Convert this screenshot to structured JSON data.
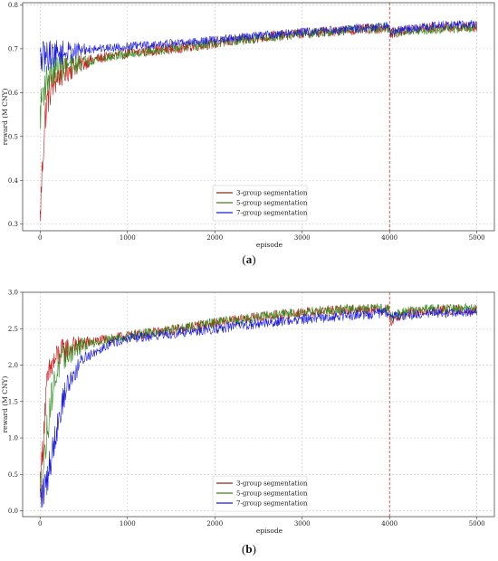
{
  "figure": {
    "caption_a": "a",
    "caption_b": "b"
  },
  "chart_data": [
    {
      "type": "line",
      "panel": "a",
      "xlabel": "episode",
      "ylabel": "reward (M CNY)",
      "xlim": [
        -200,
        5200
      ],
      "ylim": [
        0.285,
        0.805
      ],
      "xticks": [
        0,
        1000,
        2000,
        3000,
        4000,
        5000
      ],
      "yticks": [
        0.3,
        0.4,
        0.5,
        0.6,
        0.7,
        0.8
      ],
      "grid": true,
      "legend_position": "lower-center",
      "vline_episode": 4000,
      "series": [
        {
          "name": "3-group segmentation",
          "color": "#8B2A10",
          "noise_color": "#cc1111",
          "x": [
            0,
            30,
            60,
            100,
            200,
            400,
            600,
            1000,
            1500,
            2000,
            2500,
            3000,
            3500,
            3990,
            4010,
            4200,
            4500,
            5000
          ],
          "y": [
            0.31,
            0.45,
            0.55,
            0.6,
            0.64,
            0.66,
            0.675,
            0.69,
            0.7,
            0.712,
            0.725,
            0.735,
            0.742,
            0.748,
            0.735,
            0.742,
            0.748,
            0.75
          ],
          "noise": 0.012
        },
        {
          "name": "5-group segmentation",
          "color": "#4a7a1e",
          "noise_color": "#2f8f1f",
          "x": [
            0,
            30,
            60,
            100,
            200,
            400,
            600,
            1000,
            1500,
            2000,
            2500,
            3000,
            3500,
            3990,
            4010,
            4200,
            4500,
            5000
          ],
          "y": [
            0.55,
            0.6,
            0.62,
            0.64,
            0.655,
            0.665,
            0.675,
            0.688,
            0.7,
            0.712,
            0.724,
            0.734,
            0.742,
            0.748,
            0.735,
            0.74,
            0.745,
            0.748
          ],
          "noise": 0.011
        },
        {
          "name": "7-group segmentation",
          "color": "#1a1ae0",
          "noise_color": "#1a1ae0",
          "x": [
            0,
            30,
            60,
            100,
            200,
            400,
            600,
            1000,
            1500,
            2000,
            2500,
            3000,
            3500,
            3990,
            4010,
            4200,
            4500,
            5000
          ],
          "y": [
            0.675,
            0.68,
            0.683,
            0.686,
            0.69,
            0.695,
            0.7,
            0.705,
            0.712,
            0.72,
            0.73,
            0.738,
            0.745,
            0.752,
            0.738,
            0.745,
            0.752,
            0.757
          ],
          "noise": 0.01
        }
      ]
    },
    {
      "type": "line",
      "panel": "b",
      "xlabel": "episode",
      "ylabel": "reward (M CNY)",
      "xlim": [
        -200,
        5200
      ],
      "ylim": [
        -0.08,
        3.0
      ],
      "xticks": [
        0,
        1000,
        2000,
        3000,
        4000,
        5000
      ],
      "yticks": [
        0.0,
        0.5,
        1.0,
        1.5,
        2.0,
        2.5,
        3.0
      ],
      "grid": true,
      "legend_position": "lower-center",
      "vline_episode": 4000,
      "series": [
        {
          "name": "3-group segmentation",
          "color": "#8B2A10",
          "noise_color": "#cc1111",
          "x": [
            0,
            20,
            50,
            80,
            120,
            200,
            300,
            500,
            800,
            1000,
            1500,
            2000,
            2500,
            3000,
            3500,
            3990,
            4010,
            4200,
            4500,
            5000
          ],
          "y": [
            0.4,
            0.6,
            1.3,
            1.7,
            1.95,
            2.12,
            2.22,
            2.3,
            2.36,
            2.4,
            2.48,
            2.58,
            2.66,
            2.72,
            2.76,
            2.77,
            2.6,
            2.72,
            2.75,
            2.76
          ],
          "noise": 0.07
        },
        {
          "name": "5-group segmentation",
          "color": "#4a7a1e",
          "noise_color": "#2f8f1f",
          "x": [
            0,
            20,
            50,
            80,
            120,
            200,
            300,
            500,
            800,
            1000,
            1500,
            2000,
            2500,
            3000,
            3500,
            3990,
            4010,
            4200,
            4500,
            5000
          ],
          "y": [
            0.3,
            0.45,
            0.7,
            1.1,
            1.5,
            1.95,
            2.15,
            2.28,
            2.36,
            2.4,
            2.48,
            2.58,
            2.66,
            2.73,
            2.77,
            2.78,
            2.66,
            2.74,
            2.77,
            2.78
          ],
          "noise": 0.07
        },
        {
          "name": "7-group segmentation",
          "color": "#1a1ae0",
          "noise_color": "#1a1ae0",
          "x": [
            0,
            20,
            50,
            80,
            120,
            200,
            300,
            500,
            800,
            1000,
            1500,
            2000,
            2500,
            3000,
            3500,
            3990,
            4010,
            4200,
            4500,
            5000
          ],
          "y": [
            0.15,
            0.2,
            0.3,
            0.45,
            0.7,
            1.2,
            1.7,
            2.1,
            2.3,
            2.36,
            2.43,
            2.5,
            2.57,
            2.63,
            2.68,
            2.72,
            2.66,
            2.69,
            2.71,
            2.72
          ],
          "noise": 0.07
        }
      ]
    }
  ]
}
